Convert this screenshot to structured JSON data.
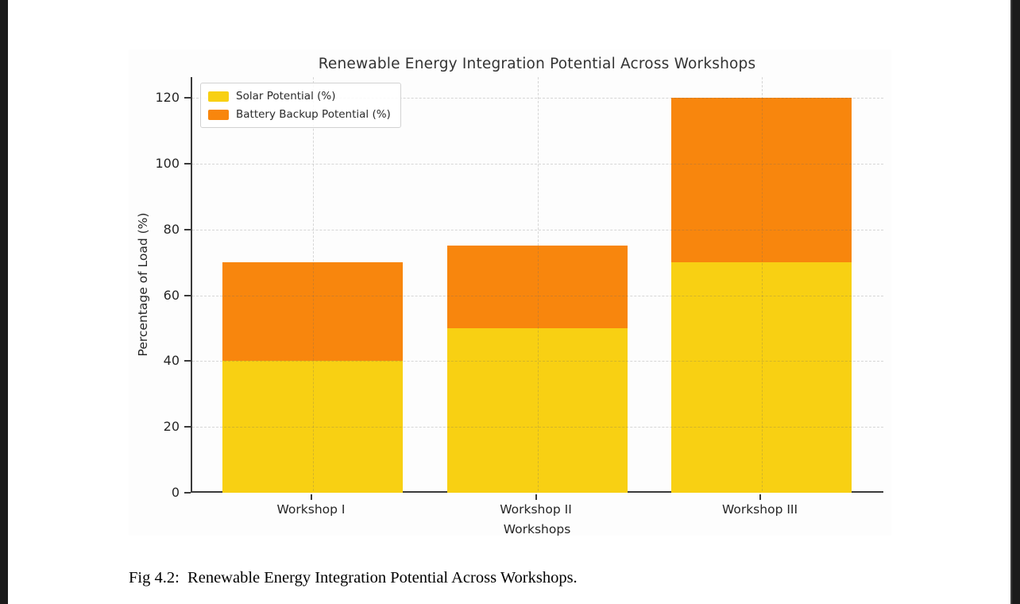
{
  "chart_data": {
    "type": "bar",
    "stacked": true,
    "title": "Renewable Energy Integration Potential Across Workshops",
    "xlabel": "Workshops",
    "ylabel": "Percentage of Load (%)",
    "categories": [
      "Workshop I",
      "Workshop II",
      "Workshop III"
    ],
    "series": [
      {
        "name": "Solar Potential (%)",
        "color": "#F8D013",
        "values": [
          40,
          50,
          70
        ]
      },
      {
        "name": "Battery Backup Potential (%)",
        "color": "#F8860D",
        "values": [
          30,
          25,
          50
        ]
      }
    ],
    "yticks": [
      0,
      20,
      40,
      60,
      80,
      100,
      120
    ],
    "ylim": [
      0,
      126
    ],
    "grid": "dashed, horizontal at y-ticks and vertical at bar centers",
    "legend_position": "upper left"
  },
  "caption": {
    "text": "Fig 4.2:  Renewable Energy Integration Potential Across Workshops."
  },
  "colors": {
    "axis_spine": "#3a3a3a",
    "tick_text": "#262626",
    "title_text": "#333333",
    "grid_line": "#d9d9d9",
    "page_edge": "#1b1b1b",
    "legend_border": "#d2d2d2"
  }
}
